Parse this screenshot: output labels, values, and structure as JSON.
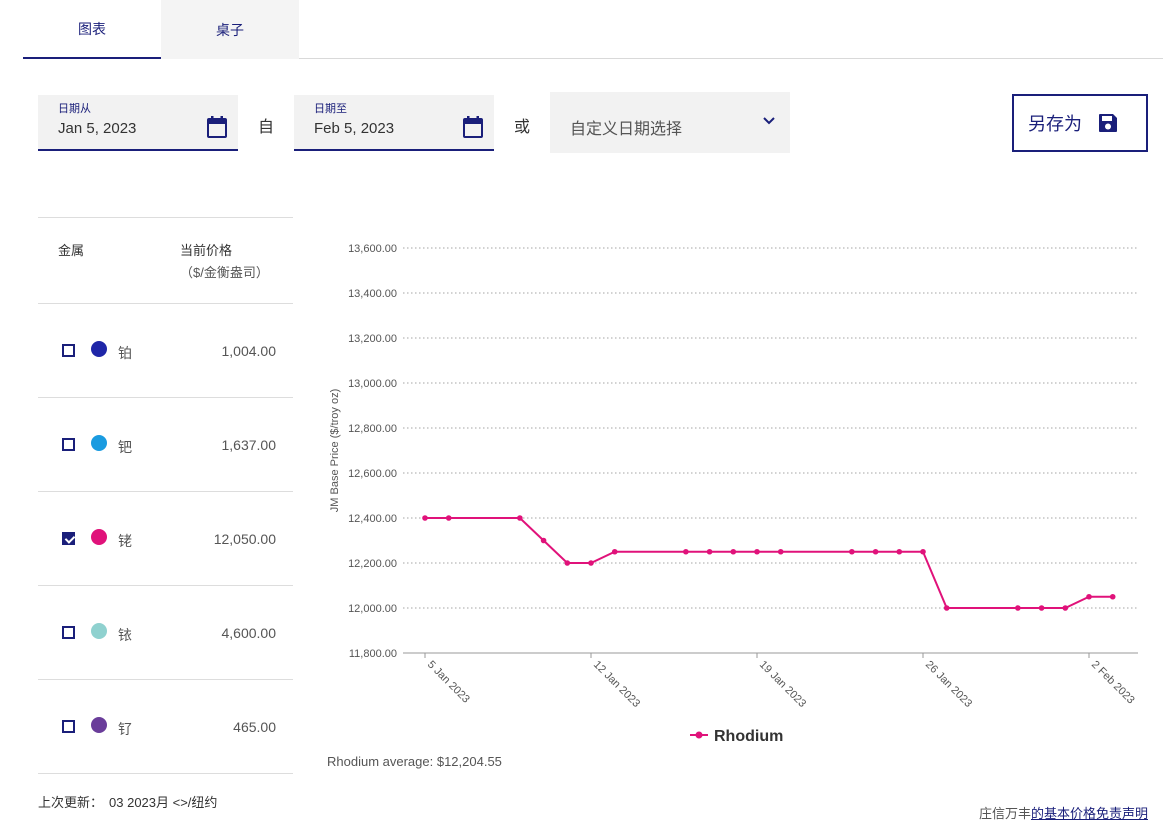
{
  "tabs": [
    {
      "label": "图表",
      "active": true
    },
    {
      "label": "桌子",
      "active": false
    }
  ],
  "date_from": {
    "label": "日期从",
    "value": "Jan 5, 2023"
  },
  "date_sep": "自",
  "date_to": {
    "label": "日期至",
    "value": "Feb 5, 2023"
  },
  "or_sep": "或",
  "custom_date": {
    "selected": "自定义日期选择"
  },
  "save": {
    "label": "另存为"
  },
  "metals": {
    "header_metal": "金属",
    "header_price": "当前价格",
    "header_unit": "（$/金衡盎司）",
    "rows": [
      {
        "name": "铂",
        "price": "1,004.00",
        "color": "#1f26a8",
        "checked": false
      },
      {
        "name": "钯",
        "price": "1,637.00",
        "color": "#1a9be0",
        "checked": false
      },
      {
        "name": "铑",
        "price": "12,050.00",
        "color": "#e0127a",
        "checked": true
      },
      {
        "name": "铱",
        "price": "4,600.00",
        "color": "#8fd1cf",
        "checked": false
      },
      {
        "name": "钌",
        "price": "465.00",
        "color": "#6a3d9a",
        "checked": false
      }
    ]
  },
  "last_update": {
    "label": "上次更新：",
    "value": "03 2023月 <>/纽约"
  },
  "chart_avg": "Rhodium average: $12,204.55",
  "disclaimer": {
    "prefix": "庄信万丰",
    "link": "的基本价格免责声明"
  },
  "chart_data": {
    "type": "line",
    "ylabel": "JM Base Price ($/troy oz)",
    "ylim": [
      11800,
      13600
    ],
    "yticks": [
      "13,600.00",
      "13,400.00",
      "13,200.00",
      "13,000.00",
      "12,800.00",
      "12,600.00",
      "12,400.00",
      "12,200.00",
      "12,000.00",
      "11,800.00"
    ],
    "xtick_labels": [
      "5 Jan 2023",
      "12 Jan 2023",
      "19 Jan 2023",
      "26 Jan 2023",
      "2 Feb 2023"
    ],
    "grid": true,
    "legend": "bottom",
    "series": [
      {
        "name": "Rhodium",
        "color": "#e0127a",
        "x": [
          "2023-01-05",
          "2023-01-06",
          "2023-01-09",
          "2023-01-10",
          "2023-01-11",
          "2023-01-12",
          "2023-01-13",
          "2023-01-16",
          "2023-01-17",
          "2023-01-18",
          "2023-01-19",
          "2023-01-20",
          "2023-01-23",
          "2023-01-24",
          "2023-01-25",
          "2023-01-26",
          "2023-01-27",
          "2023-01-30",
          "2023-01-31",
          "2023-02-01",
          "2023-02-02",
          "2023-02-03"
        ],
        "values": [
          12400,
          12400,
          12400,
          12300,
          12200,
          12200,
          12250,
          12250,
          12250,
          12250,
          12250,
          12250,
          12250,
          12250,
          12250,
          12250,
          12000,
          12000,
          12000,
          12000,
          12050,
          12050
        ]
      }
    ]
  }
}
